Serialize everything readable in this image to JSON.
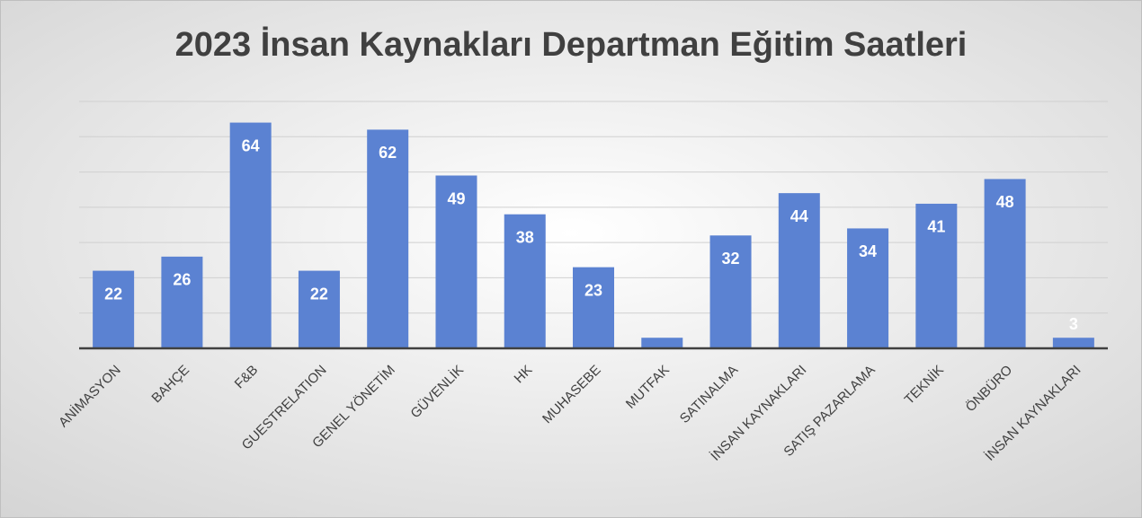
{
  "chart_data": {
    "type": "bar",
    "title": "2023 İnsan Kaynakları Departman Eğitim Saatleri",
    "categories": [
      "ANİMASYON",
      "BAHÇE",
      "F&B",
      "GUESTRELATION",
      "GENEL YÖNETİM",
      "GÜVENLİK",
      "HK",
      "MUHASEBE",
      "MUTFAK",
      "SATINALMA",
      "İNSAN KAYNAKLARI",
      "SATIŞ PAZARLAMA",
      "TEKNİK",
      "ÖNBÜRO",
      "İNSAN KAYNAKLARI"
    ],
    "values": [
      22,
      26,
      64,
      22,
      62,
      49,
      38,
      23,
      3,
      32,
      44,
      34,
      41,
      48,
      3
    ],
    "value_labels": [
      "22",
      "26",
      "64",
      "22",
      "62",
      "49",
      "38",
      "23",
      null,
      "32",
      "44",
      "34",
      "41",
      "48",
      "3"
    ],
    "color": "#5b82d2",
    "ylim": [
      0,
      70
    ],
    "yticks": [
      0,
      10,
      20,
      30,
      40,
      50,
      60,
      70
    ],
    "grid": true
  }
}
